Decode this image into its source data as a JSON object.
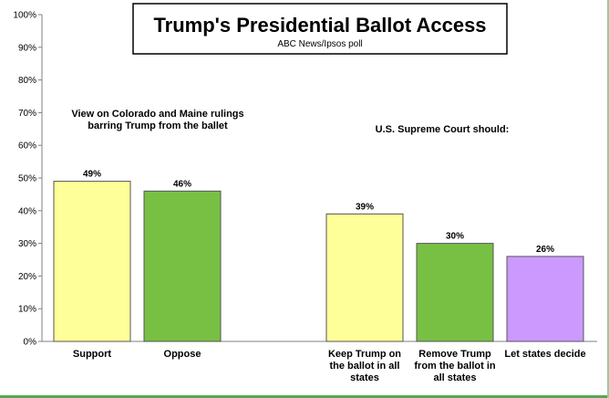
{
  "chart_data": {
    "type": "bar",
    "title": "Trump's Presidential Ballot Access",
    "subtitle": "ABC News/Ipsos poll",
    "ylim": [
      0,
      100
    ],
    "yticks": [
      "0%",
      "10%",
      "20%",
      "30%",
      "40%",
      "50%",
      "60%",
      "70%",
      "80%",
      "90%",
      "100%"
    ],
    "groups": [
      {
        "heading": [
          "View on Colorado and Maine rulings",
          "barring Trump from the ballet"
        ],
        "bars": [
          {
            "category": [
              "Support"
            ],
            "value": 49,
            "label": "49%",
            "color": "#ffff99"
          },
          {
            "category": [
              "Oppose"
            ],
            "value": 46,
            "label": "46%",
            "color": "#78c044"
          }
        ]
      },
      {
        "heading": [
          "U.S. Supreme Court should:"
        ],
        "bars": [
          {
            "category": [
              "Keep Trump on",
              "the ballot in all",
              "states"
            ],
            "value": 39,
            "label": "39%",
            "color": "#ffff99"
          },
          {
            "category": [
              "Remove Trump",
              "from the ballot in",
              "all states"
            ],
            "value": 30,
            "label": "30%",
            "color": "#78c044"
          },
          {
            "category": [
              "Let states decide"
            ],
            "value": 26,
            "label": "26%",
            "color": "#cc99ff"
          }
        ]
      }
    ]
  },
  "colors": {
    "axis": "#808080",
    "bar_border": "#555555",
    "text": "#000000"
  }
}
